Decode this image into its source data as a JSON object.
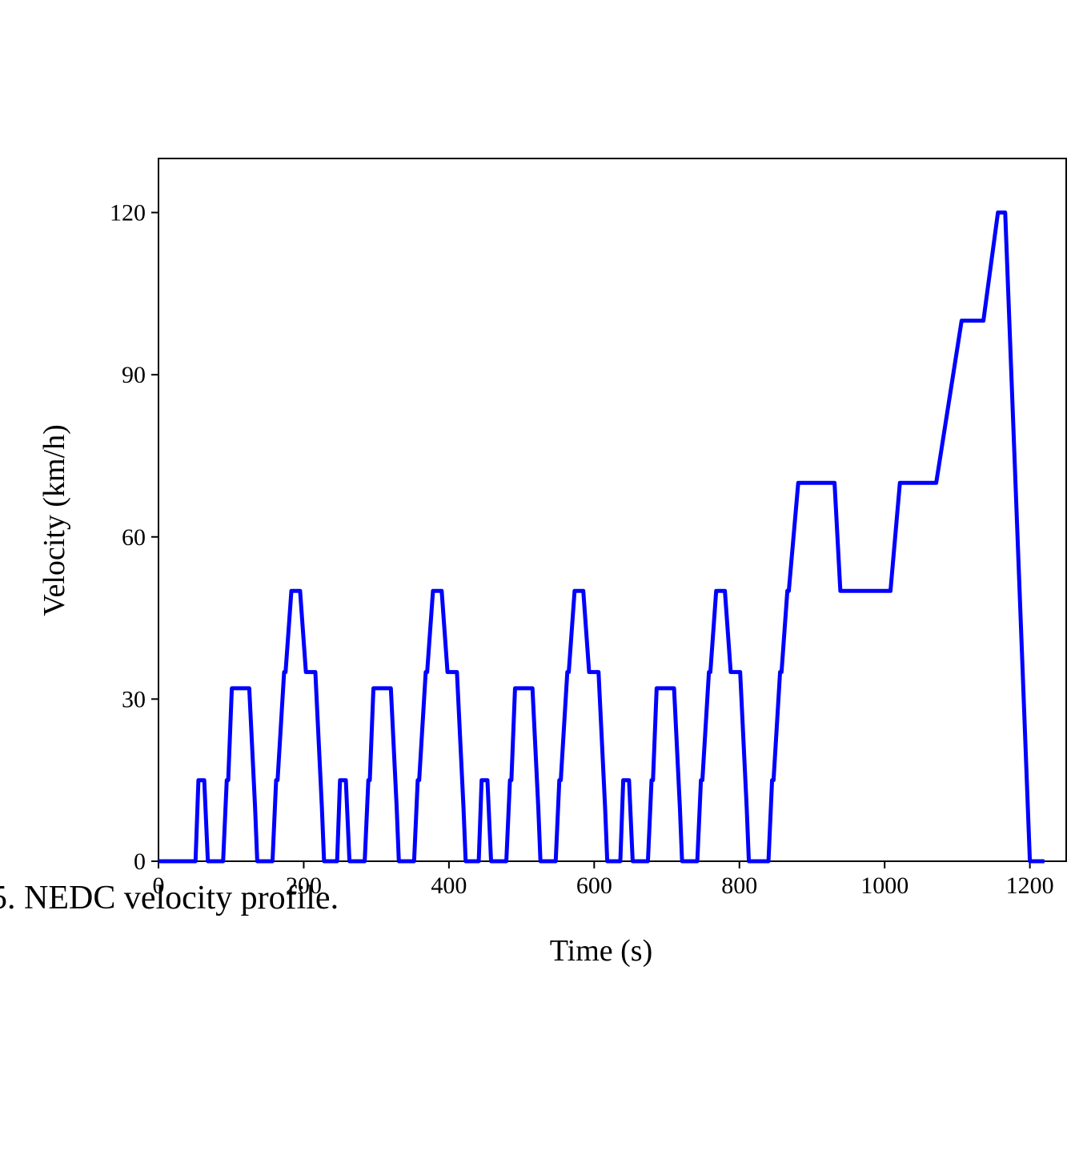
{
  "chart_data": {
    "type": "line",
    "caption": "5. NEDC velocity profile.",
    "x_label": "Time (s)",
    "y_label": "Velocity (km/h)",
    "color": "#0000ff",
    "x": [
      0,
      51,
      55,
      63,
      68,
      89,
      94,
      96,
      101,
      125,
      133,
      136,
      157,
      162,
      164,
      173,
      175,
      183,
      195,
      203,
      216,
      225,
      228,
      246,
      250,
      258,
      263,
      284,
      289,
      291,
      296,
      320,
      328,
      331,
      352,
      357,
      359,
      368,
      370,
      378,
      390,
      398,
      411,
      420,
      423,
      441,
      445,
      453,
      458,
      479,
      484,
      486,
      491,
      515,
      523,
      526,
      547,
      552,
      554,
      563,
      565,
      573,
      585,
      593,
      606,
      615,
      618,
      636,
      640,
      648,
      653,
      674,
      679,
      681,
      686,
      710,
      718,
      721,
      742,
      747,
      749,
      758,
      760,
      768,
      780,
      788,
      801,
      810,
      813,
      840,
      845,
      847,
      856,
      858,
      866,
      868,
      881,
      931,
      939,
      1008,
      1021,
      1071,
      1106,
      1136,
      1156,
      1166,
      1200,
      1220
    ],
    "values": [
      0,
      0,
      15,
      15,
      0,
      0,
      15,
      15,
      32,
      32,
      10,
      0,
      0,
      15,
      15,
      35,
      35,
      50,
      50,
      35,
      35,
      10,
      0,
      0,
      15,
      15,
      0,
      0,
      15,
      15,
      32,
      32,
      10,
      0,
      0,
      15,
      15,
      35,
      35,
      50,
      50,
      35,
      35,
      10,
      0,
      0,
      15,
      15,
      0,
      0,
      15,
      15,
      32,
      32,
      10,
      0,
      0,
      15,
      15,
      35,
      35,
      50,
      50,
      35,
      35,
      10,
      0,
      0,
      15,
      15,
      0,
      0,
      15,
      15,
      32,
      32,
      10,
      0,
      0,
      15,
      15,
      35,
      35,
      50,
      50,
      35,
      35,
      10,
      0,
      0,
      15,
      15,
      35,
      35,
      50,
      50,
      70,
      70,
      50,
      50,
      70,
      70,
      100,
      100,
      120,
      120,
      0,
      0
    ],
    "xlim": [
      0,
      1250
    ],
    "ylim": [
      0,
      130
    ],
    "xticks": [
      0,
      200,
      400,
      600,
      800,
      1000,
      1200
    ],
    "yticks": [
      0,
      30,
      60,
      90,
      120
    ]
  }
}
